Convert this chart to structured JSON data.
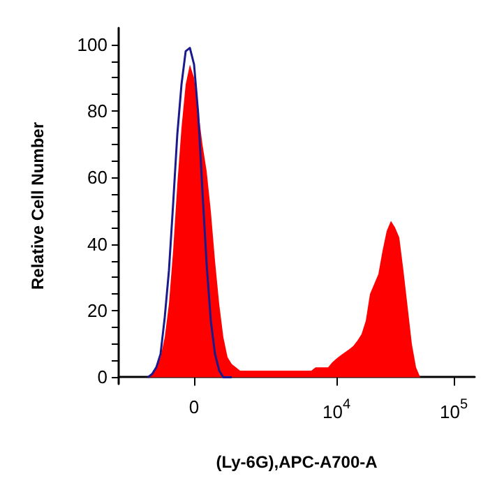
{
  "chart_data": {
    "type": "area",
    "xlabel": "(Ly-6G),APC-A700-A",
    "ylabel": "Relative Cell Number",
    "categories": [
      null,
      null,
      null,
      null,
      null,
      null,
      null,
      null,
      null,
      null,
      null,
      null,
      null,
      null,
      null,
      null,
      null,
      null,
      "0",
      null,
      null,
      null,
      null,
      null,
      null,
      null,
      null,
      null,
      null,
      null,
      null,
      null,
      null,
      null,
      null,
      null,
      null,
      null,
      null,
      null,
      null,
      null,
      null,
      null,
      null,
      null,
      null,
      null,
      null,
      null,
      null,
      null,
      "10$^{4}$",
      null,
      null,
      null,
      null,
      null,
      null,
      null,
      null,
      null,
      null,
      null,
      null,
      null,
      null,
      null,
      null,
      null,
      null,
      null,
      null,
      null,
      null,
      null,
      null,
      null,
      null,
      null,
      "10$^{5}$",
      null,
      null,
      null,
      null,
      null
    ],
    "series": [
      {
        "color": "#ff0000",
        "values": [
          0,
          0,
          0,
          0,
          0,
          0,
          0,
          0,
          1,
          3,
          6,
          12,
          22,
          38,
          58,
          75,
          88,
          94,
          90,
          80,
          70,
          62,
          50,
          35,
          22,
          12,
          6,
          4,
          3,
          2,
          2,
          2,
          2,
          2,
          2,
          2,
          2,
          2,
          2,
          2,
          2,
          2,
          2,
          2,
          2,
          2,
          2,
          3,
          3,
          3,
          3,
          4.5,
          5.6,
          6.6,
          7.5,
          8.4,
          9.4,
          11,
          13,
          17,
          25,
          28,
          31,
          38,
          44,
          47,
          45,
          42,
          32,
          21,
          10,
          3,
          0,
          0,
          0,
          0,
          0,
          0,
          0,
          0,
          0,
          0,
          0,
          0,
          0,
          0
        ]
      },
      {
        "type": "line",
        "color": "#1a1a8c",
        "values": [
          null,
          null,
          null,
          null,
          null,
          null,
          null,
          0,
          1,
          3,
          7,
          18,
          32,
          52,
          73,
          88,
          98,
          99,
          94,
          79,
          56,
          34,
          17,
          7,
          2,
          0,
          0,
          0,
          null,
          null,
          null,
          null,
          null,
          null,
          null,
          null,
          null,
          null,
          null,
          null,
          null,
          null,
          null,
          null,
          null,
          null,
          null,
          null,
          null,
          null,
          null,
          null,
          null,
          null,
          null,
          null,
          null,
          null,
          null,
          null,
          null,
          null,
          null,
          null,
          null,
          null,
          null,
          null,
          null,
          null,
          null,
          null,
          null,
          null,
          null,
          null,
          null,
          null,
          null,
          null,
          null,
          null,
          null,
          null,
          null,
          null
        ]
      }
    ],
    "ylim": [
      -2,
      105
    ],
    "yticks": [
      0,
      {
        "value": 5,
        "label": null
      },
      {
        "value": 10,
        "label": null
      },
      {
        "value": 15,
        "label": null
      },
      20,
      {
        "value": 25,
        "label": null
      },
      {
        "value": 30,
        "label": null
      },
      {
        "value": 35,
        "label": null
      },
      40,
      {
        "value": 45,
        "label": null
      },
      {
        "value": 50,
        "label": null
      },
      {
        "value": 55,
        "label": null
      },
      60,
      {
        "value": 65,
        "label": null
      },
      {
        "value": 70,
        "label": null
      },
      {
        "value": 75,
        "label": null
      },
      80,
      {
        "value": 85,
        "label": null
      },
      {
        "value": 90,
        "label": null
      },
      {
        "value": 95,
        "label": null
      },
      100
    ],
    "grid": false
  }
}
